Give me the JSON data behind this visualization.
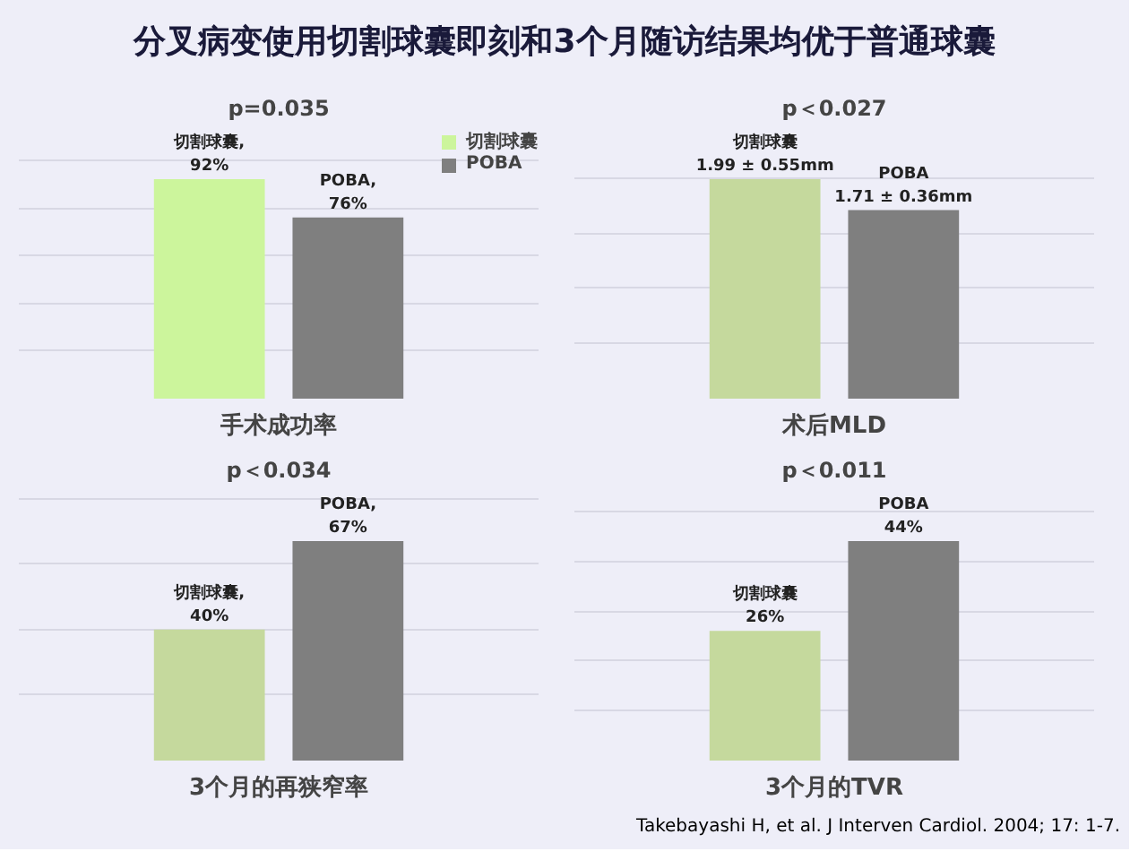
{
  "chart_data": [
    {
      "type": "bar",
      "title": "分叉病变使用切割球囊即刻和3个月随访结果均优于普通球囊",
      "subtitle": "p=0.035",
      "xlabel": "手术成功率",
      "categories": [
        null
      ],
      "legend": "top",
      "grid": "y",
      "tick_labels": false,
      "series": [
        {
          "name": "切割球囊",
          "color": "#ccf59c",
          "values": [
            92
          ],
          "value_labels": [
            "切割球囊,\n92%"
          ]
        },
        {
          "name": "POBA",
          "color": "#7f7f7f",
          "values": [
            76
          ],
          "value_labels": [
            "POBA,\n76%"
          ]
        }
      ]
    },
    {
      "type": "bar",
      "subtitle": "p＜0.027",
      "xlabel": "术后MLD",
      "categories": [
        null
      ],
      "grid": "y",
      "tick_labels": false,
      "series": [
        {
          "color": "#c5d99d",
          "values": [
            1.99
          ],
          "value_labels": [
            "切割球囊\n1.99 ± 0.55mm"
          ]
        },
        {
          "color": "#7f7f7f",
          "values": [
            1.71
          ],
          "value_labels": [
            "POBA\n1.71 ± 0.36mm"
          ]
        }
      ]
    },
    {
      "type": "bar",
      "subtitle": "p＜0.034",
      "xlabel": "3个月的再狭窄率",
      "categories": [
        null
      ],
      "grid": "y",
      "tick_labels": false,
      "series": [
        {
          "color": "#c5d99d",
          "values": [
            40
          ],
          "value_labels": [
            "切割球囊,\n40%"
          ]
        },
        {
          "color": "#7f7f7f",
          "values": [
            67
          ],
          "value_labels": [
            "POBA,\n67%"
          ]
        }
      ]
    },
    {
      "type": "bar",
      "subtitle": "p＜0.011",
      "xlabel": "3个月的TVR",
      "categories": [
        null
      ],
      "grid": "y",
      "tick_labels": false,
      "annotations": [
        "Takebayashi H, et al. J Interven Cardiol. 2004; 17: 1-7."
      ],
      "series": [
        {
          "color": "#c5d99d",
          "values": [
            26
          ],
          "value_labels": [
            "切割球囊\n26%"
          ]
        },
        {
          "color": "#7f7f7f",
          "values": [
            44
          ],
          "value_labels": [
            "POBA\n44%"
          ]
        }
      ]
    }
  ]
}
